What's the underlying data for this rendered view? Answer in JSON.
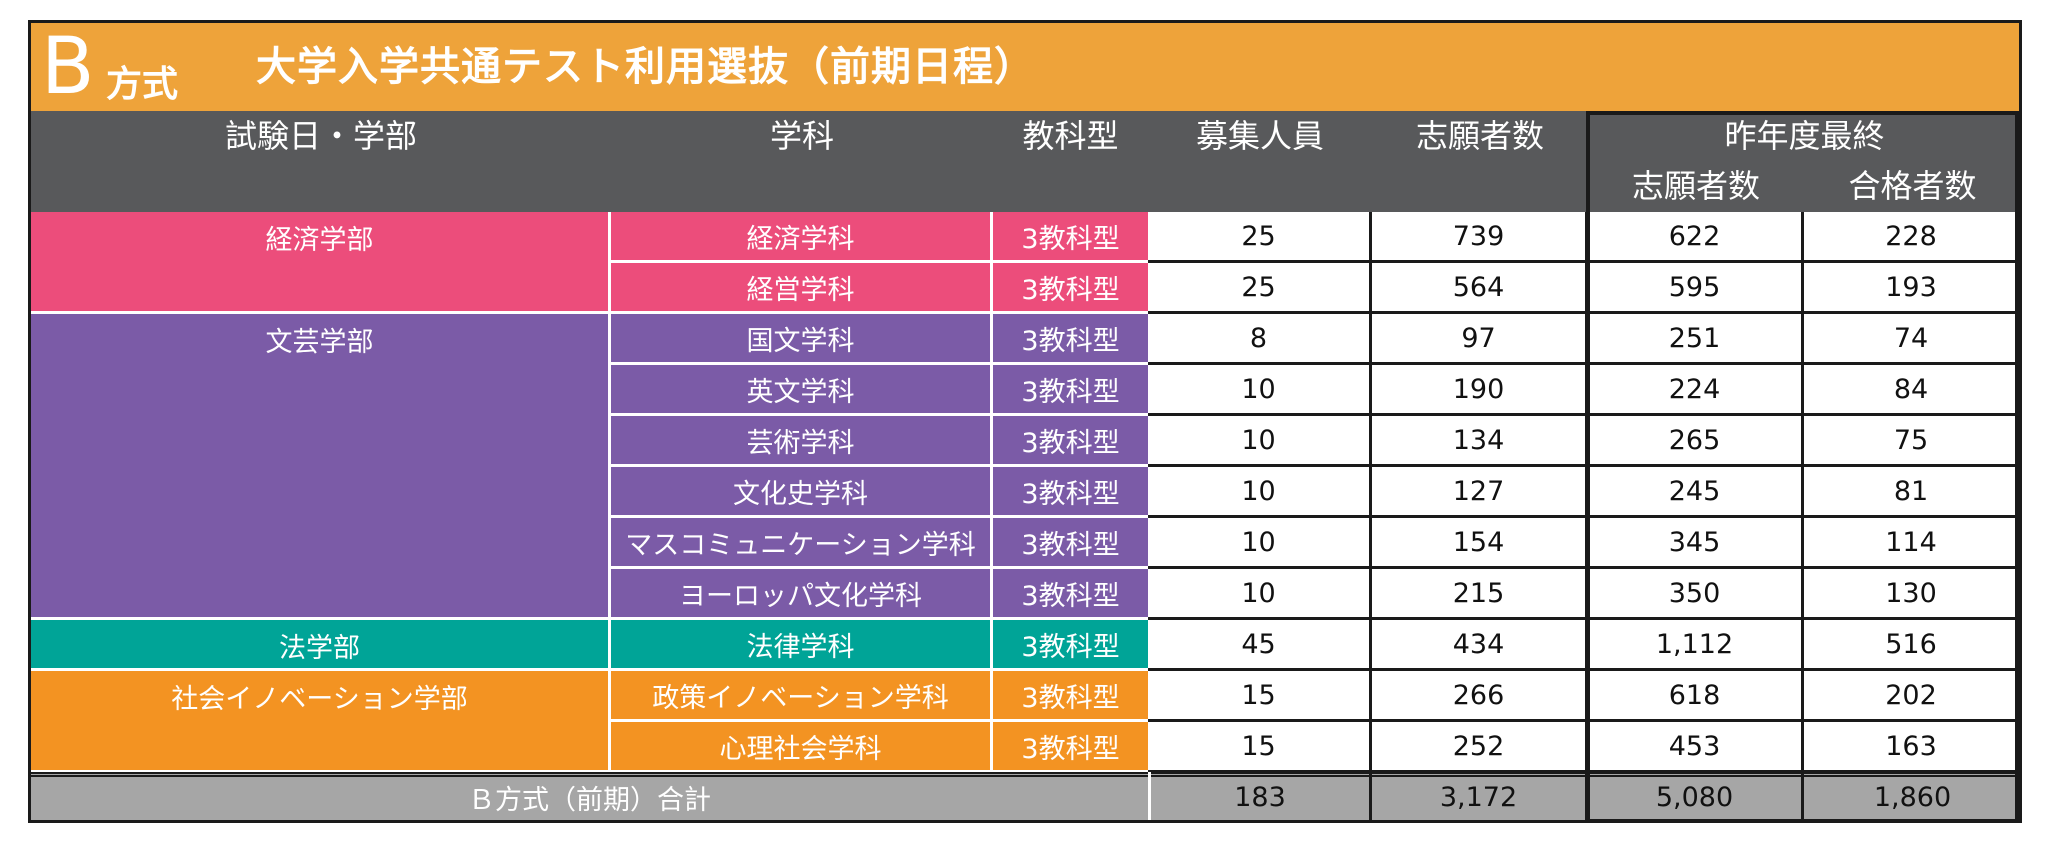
{
  "title": {
    "letter": "B",
    "suffix": "方式",
    "main": "大学入学共通テスト利用選抜（前期日程）"
  },
  "header": {
    "date_faculty": "試験日・学部",
    "department": "学科",
    "subject_type": "教科型",
    "quota": "募集人員",
    "applicants": "志願者数",
    "prev_year": "昨年度最終",
    "prev_applicants": "志願者数",
    "prev_passed": "合格者数"
  },
  "colors": {
    "title_bar": "#eea33a",
    "header_bar": "#58595b",
    "economics": "#ec4d7b",
    "literature": "#7b5ba7",
    "law": "#00a497",
    "social_innovation": "#f39322",
    "total_bar": "#a6a6a6"
  },
  "faculties": [
    {
      "name": "経済学部",
      "color": "#ec4d7b",
      "rows": [
        {
          "department": "経済学科",
          "type": "3教科型",
          "quota": "25",
          "applicants": "739",
          "prev_applicants": "622",
          "prev_passed": "228"
        },
        {
          "department": "経営学科",
          "type": "3教科型",
          "quota": "25",
          "applicants": "564",
          "prev_applicants": "595",
          "prev_passed": "193"
        }
      ]
    },
    {
      "name": "文芸学部",
      "color": "#7b5ba7",
      "rows": [
        {
          "department": "国文学科",
          "type": "3教科型",
          "quota": "8",
          "applicants": "97",
          "prev_applicants": "251",
          "prev_passed": "74"
        },
        {
          "department": "英文学科",
          "type": "3教科型",
          "quota": "10",
          "applicants": "190",
          "prev_applicants": "224",
          "prev_passed": "84"
        },
        {
          "department": "芸術学科",
          "type": "3教科型",
          "quota": "10",
          "applicants": "134",
          "prev_applicants": "265",
          "prev_passed": "75"
        },
        {
          "department": "文化史学科",
          "type": "3教科型",
          "quota": "10",
          "applicants": "127",
          "prev_applicants": "245",
          "prev_passed": "81"
        },
        {
          "department": "マスコミュニケーション学科",
          "type": "3教科型",
          "quota": "10",
          "applicants": "154",
          "prev_applicants": "345",
          "prev_passed": "114"
        },
        {
          "department": "ヨーロッパ文化学科",
          "type": "3教科型",
          "quota": "10",
          "applicants": "215",
          "prev_applicants": "350",
          "prev_passed": "130"
        }
      ]
    },
    {
      "name": "法学部",
      "color": "#00a497",
      "rows": [
        {
          "department": "法律学科",
          "type": "3教科型",
          "quota": "45",
          "applicants": "434",
          "prev_applicants": "1,112",
          "prev_passed": "516"
        }
      ]
    },
    {
      "name": "社会イノベーション学部",
      "color": "#f39322",
      "rows": [
        {
          "department": "政策イノベーション学科",
          "type": "3教科型",
          "quota": "15",
          "applicants": "266",
          "prev_applicants": "618",
          "prev_passed": "202"
        },
        {
          "department": "心理社会学科",
          "type": "3教科型",
          "quota": "15",
          "applicants": "252",
          "prev_applicants": "453",
          "prev_passed": "163"
        }
      ]
    }
  ],
  "total": {
    "label": "Ｂ方式（前期）合計",
    "quota": "183",
    "applicants": "3,172",
    "prev_applicants": "5,080",
    "prev_passed": "1,860"
  }
}
